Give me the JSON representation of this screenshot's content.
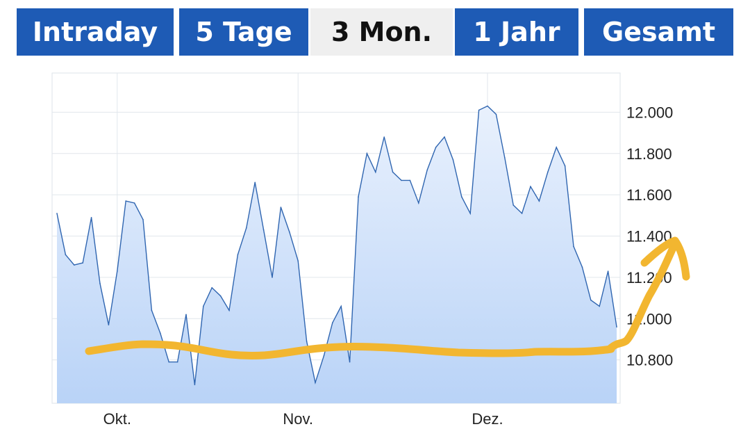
{
  "tabs": [
    {
      "label": "Intraday",
      "active": false
    },
    {
      "label": "5 Tage",
      "active": false
    },
    {
      "label": "3 Mon.",
      "active": true
    },
    {
      "label": "1 Jahr",
      "active": false
    },
    {
      "label": "Gesamt",
      "active": false
    }
  ],
  "colors": {
    "tab_bg": "#1e5bb5",
    "tab_active_bg": "#efefef",
    "line": "#2f65b0",
    "area_top": "#e9f1fd",
    "area_bottom": "#b9d3f7",
    "annotation": "#f2b630"
  },
  "chart_data": {
    "type": "area",
    "title": "",
    "xlabel": "",
    "ylabel": "",
    "y_ticks": [
      {
        "value": 12000,
        "label": "12.000"
      },
      {
        "value": 11800,
        "label": "11.800"
      },
      {
        "value": 11600,
        "label": "11.600"
      },
      {
        "value": 11400,
        "label": "11.400"
      },
      {
        "value": 11200,
        "label": "11.200"
      },
      {
        "value": 11000,
        "label": "11.000"
      },
      {
        "value": 10800,
        "label": "10.800"
      }
    ],
    "x_ticks": [
      {
        "label": "Okt.",
        "index": 7
      },
      {
        "label": "Nov.",
        "index": 28
      },
      {
        "label": "Dez.",
        "index": 50
      }
    ],
    "ylim": [
      10590,
      12190
    ],
    "grid": true,
    "series": [
      {
        "values": [
          11510,
          11310,
          11260,
          11270,
          11490,
          11170,
          10970,
          11230,
          11570,
          11560,
          11480,
          11040,
          10930,
          10790,
          10790,
          11020,
          10680,
          11060,
          11150,
          11110,
          11040,
          11310,
          11440,
          11660,
          11430,
          11200,
          11540,
          11420,
          11280,
          10890,
          10690,
          10820,
          10980,
          11060,
          10790,
          11590,
          11800,
          11710,
          11880,
          11710,
          11670,
          11670,
          11560,
          11720,
          11830,
          11880,
          11770,
          11590,
          11510,
          12010,
          12030,
          11990,
          11780,
          11550,
          11510,
          11640,
          11570,
          11710,
          11830,
          11740,
          11350,
          11250,
          11090,
          11060,
          11230,
          10960
        ]
      }
    ],
    "annotation": "hand-drawn yellow stroke along ~10.850 with arrow rising toward ~11.400 at right edge"
  }
}
